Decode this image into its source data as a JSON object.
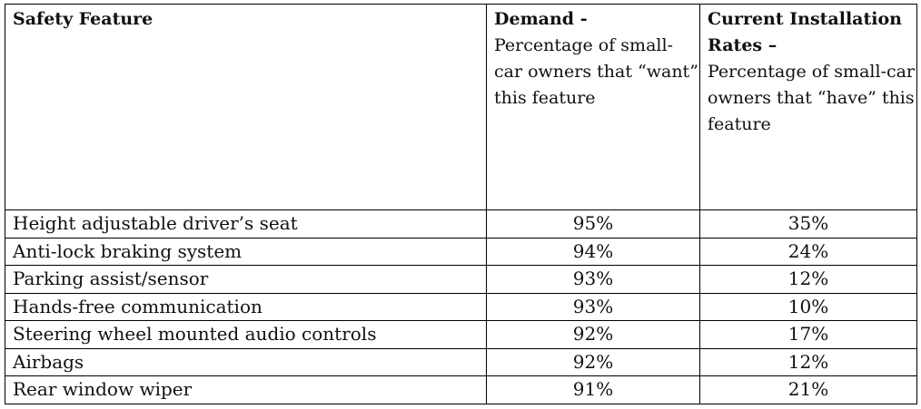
{
  "table": {
    "headers": [
      {
        "title": "Safety Feature",
        "subtitle": ""
      },
      {
        "title": "Demand -",
        "subtitle": "Percentage of small-car owners that “want” this feature"
      },
      {
        "title": "Current Installation Rates –",
        "subtitle": "Percentage of small-car owners that “have” this feature"
      }
    ],
    "rows": [
      {
        "feature": "Height adjustable driver’s seat",
        "demand": "95%",
        "installed": "35%"
      },
      {
        "feature": "Anti-lock braking system",
        "demand": "94%",
        "installed": "24%"
      },
      {
        "feature": "Parking assist/sensor",
        "demand": "93%",
        "installed": "12%"
      },
      {
        "feature": "Hands-free communication",
        "demand": "93%",
        "installed": "10%"
      },
      {
        "feature": "Steering wheel mounted audio controls",
        "demand": "92%",
        "installed": "17%"
      },
      {
        "feature": "Airbags",
        "demand": "92%",
        "installed": "12%"
      },
      {
        "feature": "Rear window wiper",
        "demand": "91%",
        "installed": "21%"
      }
    ]
  }
}
